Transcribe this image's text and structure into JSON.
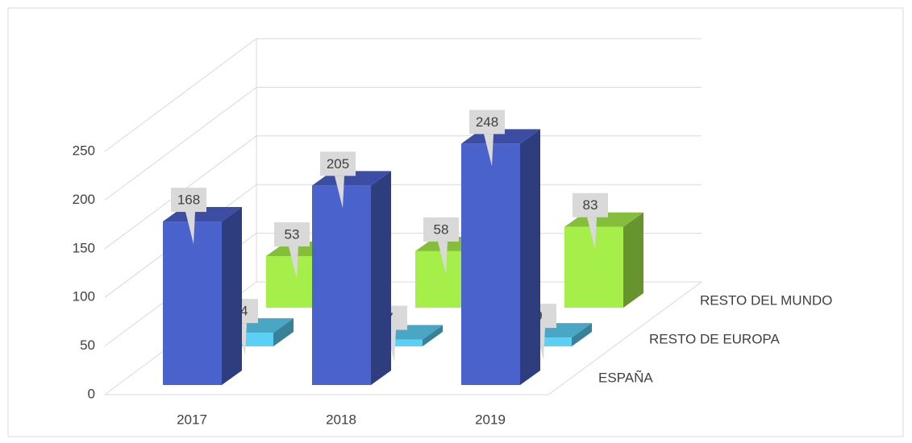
{
  "chart_data": {
    "type": "bar3d",
    "categories": [
      "2017",
      "2018",
      "2019"
    ],
    "series": [
      {
        "name": "ESPAÑA",
        "color": "#4a62cc",
        "values": [
          168,
          205,
          248
        ]
      },
      {
        "name": "RESTO DE EUROPA",
        "color": "#5bd0f5",
        "values": [
          14,
          7,
          9
        ]
      },
      {
        "name": "RESTO DEL MUNDO",
        "color": "#a6ee4a",
        "values": [
          53,
          58,
          83
        ]
      }
    ],
    "ylim": [
      0,
      250
    ],
    "yticks": [
      0,
      50,
      100,
      150,
      200,
      250
    ],
    "grid": true
  }
}
